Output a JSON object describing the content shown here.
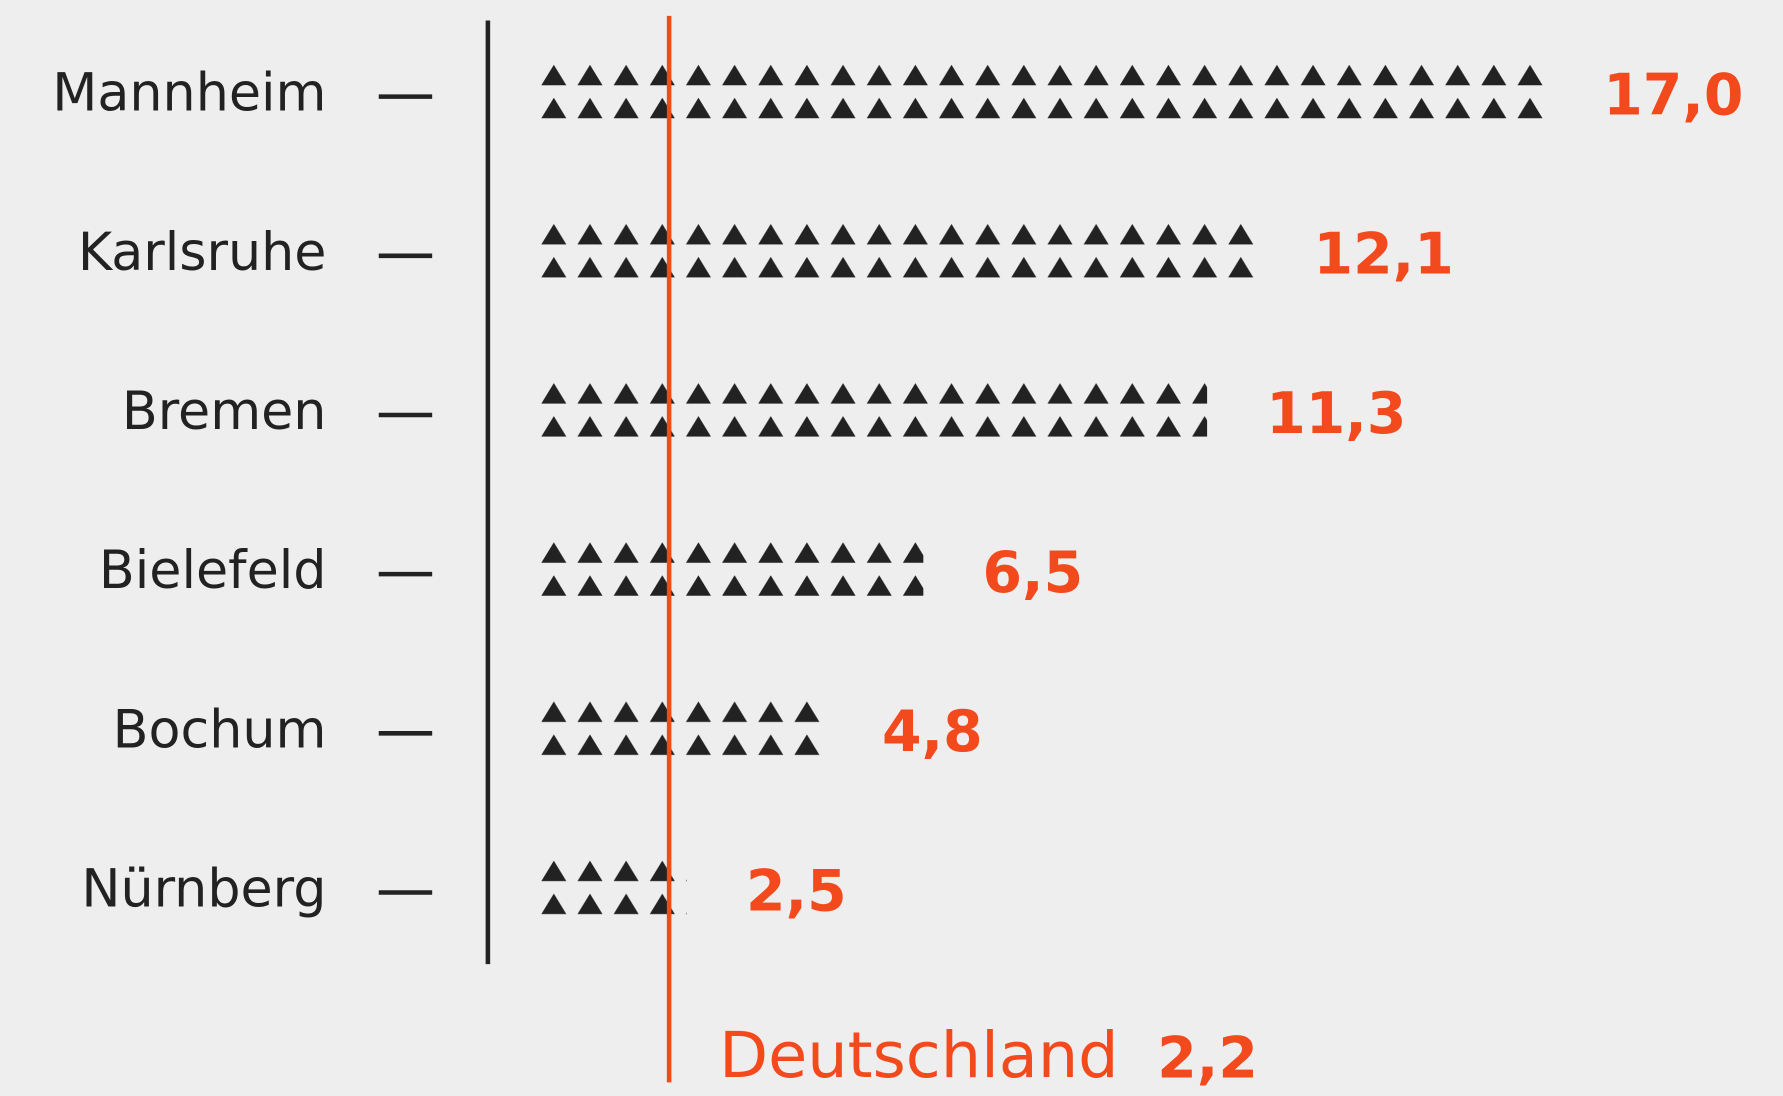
{
  "chart_data": {
    "type": "pictogram-bar",
    "categories": [
      "Mannheim",
      "Karlsruhe",
      "Bremen",
      "Bielefeld",
      "Bochum",
      "Nürnberg"
    ],
    "values": [
      17.0,
      12.1,
      11.3,
      6.5,
      4.8,
      2.5
    ],
    "value_labels": [
      "17,0",
      "12,1",
      "11,3",
      "6,5",
      "4,8",
      "2,5"
    ],
    "color": "#222222",
    "label_color": "#f24a1d",
    "reference_line": {
      "label": "Deutschland",
      "value": 2.2,
      "value_label": "2,2",
      "color": "#f24a1d"
    }
  }
}
